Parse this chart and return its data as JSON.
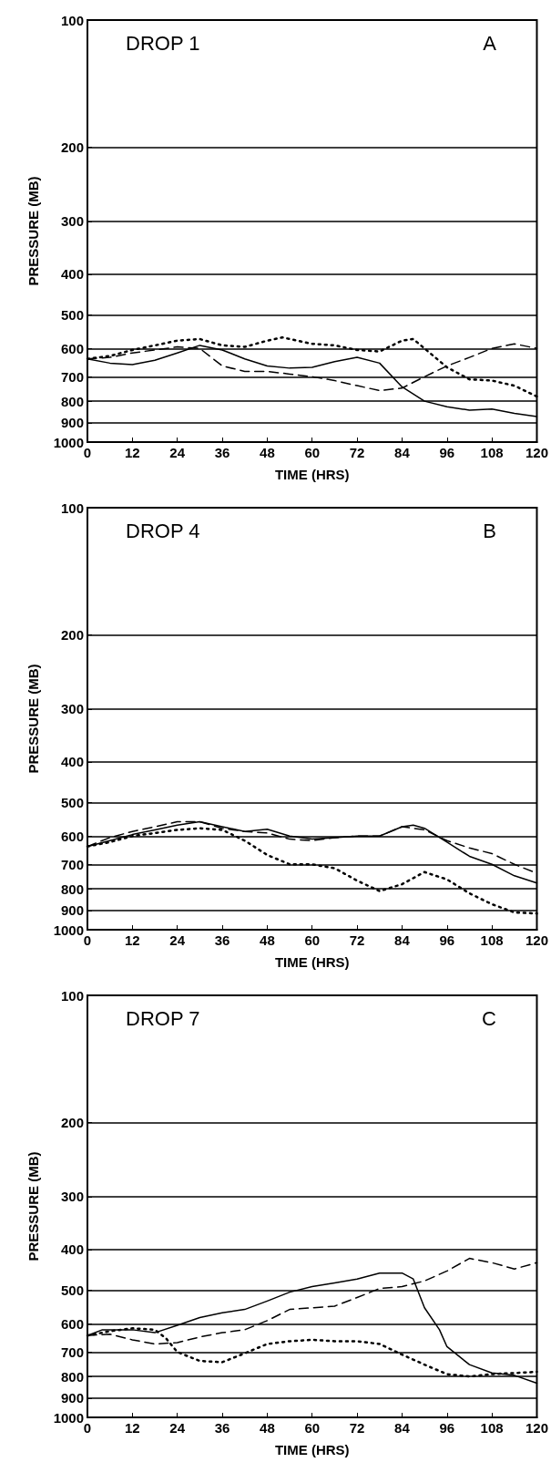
{
  "chart_data": [
    {
      "type": "line",
      "annotations": [
        "DROP 1",
        "A"
      ],
      "xlabel": "TIME (HRS)",
      "ylabel": "PRESSURE (MB)",
      "log": "y",
      "grid": "y",
      "marker": "none",
      "xlim": [
        0,
        120
      ],
      "xticks": [
        0,
        12,
        24,
        36,
        48,
        60,
        72,
        84,
        96,
        108,
        120
      ],
      "ylim": [
        1000,
        100
      ],
      "yticks": [
        100,
        200,
        300,
        400,
        500,
        600,
        700,
        800,
        900,
        1000
      ],
      "series": [
        {
          "color": "#000000",
          "line_style": "solid",
          "x": [
            0,
            6,
            12,
            18,
            24,
            30,
            36,
            42,
            48,
            54,
            60,
            66,
            72,
            78,
            84,
            90,
            96,
            102,
            108,
            114,
            120
          ],
          "values": [
            635,
            650,
            655,
            640,
            615,
            590,
            605,
            635,
            660,
            668,
            665,
            645,
            630,
            650,
            740,
            800,
            825,
            840,
            835,
            855,
            870
          ]
        },
        {
          "color": "#000000",
          "line_style": "dashed",
          "x": [
            0,
            6,
            12,
            18,
            24,
            30,
            36,
            42,
            48,
            54,
            60,
            66,
            72,
            78,
            84,
            90,
            96,
            102,
            108,
            114,
            120
          ],
          "values": [
            635,
            630,
            615,
            605,
            595,
            600,
            660,
            680,
            680,
            690,
            700,
            715,
            735,
            755,
            745,
            700,
            660,
            630,
            600,
            585,
            600
          ]
        },
        {
          "color": "#000000",
          "line_style": "dotted",
          "x": [
            0,
            6,
            12,
            18,
            24,
            30,
            36,
            42,
            48,
            52,
            60,
            66,
            72,
            78,
            84,
            87,
            90,
            96,
            102,
            108,
            114,
            120
          ],
          "values": [
            635,
            625,
            605,
            590,
            575,
            570,
            590,
            595,
            575,
            565,
            585,
            590,
            605,
            610,
            575,
            570,
            600,
            665,
            710,
            715,
            735,
            780
          ]
        }
      ]
    },
    {
      "type": "line",
      "annotations": [
        "DROP 4",
        "B"
      ],
      "xlabel": "TIME (HRS)",
      "ylabel": "PRESSURE (MB)",
      "log": "y",
      "grid": "y",
      "marker": "none",
      "xlim": [
        0,
        120
      ],
      "xticks": [
        0,
        12,
        24,
        36,
        48,
        60,
        72,
        84,
        96,
        108,
        120
      ],
      "ylim": [
        1000,
        100
      ],
      "yticks": [
        100,
        200,
        300,
        400,
        500,
        600,
        700,
        800,
        900,
        1000
      ],
      "series": [
        {
          "color": "#000000",
          "line_style": "solid",
          "x": [
            0,
            6,
            12,
            18,
            24,
            30,
            36,
            42,
            48,
            54,
            60,
            66,
            72,
            78,
            84,
            87,
            90,
            96,
            102,
            108,
            114,
            120
          ],
          "values": [
            635,
            615,
            595,
            580,
            565,
            555,
            570,
            585,
            578,
            600,
            610,
            605,
            600,
            600,
            570,
            565,
            575,
            620,
            670,
            700,
            745,
            775
          ]
        },
        {
          "color": "#000000",
          "line_style": "dashed",
          "x": [
            0,
            6,
            12,
            18,
            24,
            30,
            36,
            42,
            48,
            54,
            60,
            66,
            72,
            78,
            84,
            90,
            96,
            102,
            108,
            114,
            120
          ],
          "values": [
            635,
            605,
            585,
            570,
            555,
            555,
            575,
            585,
            590,
            610,
            615,
            605,
            600,
            600,
            570,
            580,
            615,
            640,
            660,
            700,
            735
          ]
        },
        {
          "color": "#000000",
          "line_style": "dotted",
          "x": [
            0,
            6,
            12,
            18,
            24,
            30,
            36,
            42,
            48,
            54,
            60,
            66,
            72,
            78,
            84,
            90,
            96,
            102,
            108,
            114,
            120
          ],
          "values": [
            635,
            620,
            600,
            590,
            580,
            575,
            580,
            615,
            665,
            700,
            700,
            715,
            765,
            810,
            780,
            730,
            760,
            820,
            870,
            910,
            915
          ]
        }
      ]
    },
    {
      "type": "line",
      "annotations": [
        "DROP 7",
        "C"
      ],
      "xlabel": "TIME (HRS)",
      "ylabel": "PRESSURE (MB)",
      "log": "y",
      "grid": "y",
      "marker": "none",
      "xlim": [
        0,
        120
      ],
      "xticks": [
        0,
        12,
        24,
        36,
        48,
        60,
        72,
        84,
        96,
        108,
        120
      ],
      "ylim": [
        1000,
        100
      ],
      "yticks": [
        100,
        200,
        300,
        400,
        500,
        600,
        700,
        800,
        900,
        1000
      ],
      "series": [
        {
          "color": "#000000",
          "line_style": "solid",
          "x": [
            0,
            4,
            12,
            18,
            24,
            30,
            36,
            42,
            48,
            54,
            60,
            66,
            72,
            78,
            84,
            87,
            90,
            94,
            96,
            102,
            108,
            114,
            120
          ],
          "values": [
            640,
            620,
            620,
            630,
            605,
            580,
            565,
            555,
            530,
            505,
            490,
            480,
            470,
            455,
            455,
            470,
            550,
            620,
            680,
            750,
            785,
            795,
            830
          ]
        },
        {
          "color": "#000000",
          "line_style": "dashed",
          "x": [
            0,
            6,
            12,
            18,
            24,
            30,
            36,
            42,
            48,
            54,
            60,
            66,
            72,
            78,
            84,
            90,
            96,
            102,
            108,
            114,
            120
          ],
          "values": [
            640,
            635,
            655,
            670,
            665,
            645,
            630,
            620,
            590,
            555,
            550,
            545,
            520,
            495,
            490,
            475,
            450,
            420,
            430,
            445,
            430
          ]
        },
        {
          "color": "#000000",
          "line_style": "dotted",
          "x": [
            0,
            6,
            12,
            18,
            21,
            24,
            30,
            36,
            42,
            48,
            54,
            60,
            66,
            72,
            78,
            84,
            90,
            96,
            102,
            108,
            114,
            120
          ],
          "values": [
            640,
            625,
            615,
            620,
            650,
            700,
            735,
            740,
            705,
            670,
            660,
            655,
            660,
            660,
            670,
            710,
            750,
            790,
            800,
            790,
            785,
            780
          ]
        }
      ]
    }
  ]
}
